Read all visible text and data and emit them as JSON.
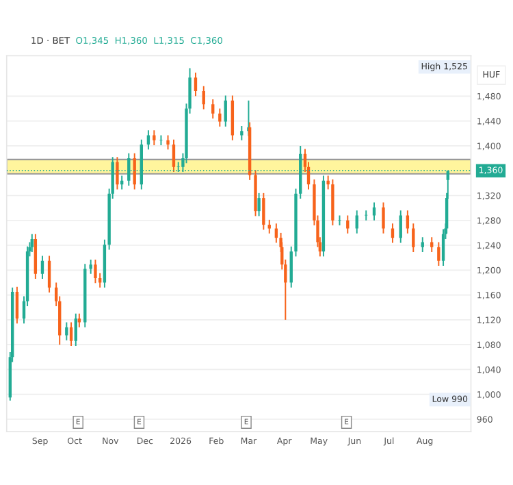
{
  "chart_data": {
    "type": "candlestick",
    "title": "1D · BET",
    "subtitle": "O1,345  H1,360  L1,315  C1,360",
    "x": [
      "2025-08-06",
      "2025-08-08",
      "2025-08-12",
      "2025-08-18",
      "2025-08-21",
      "2025-08-23",
      "2025-08-25",
      "2025-08-28",
      "2025-09-03",
      "2025-09-09",
      "2025-09-15",
      "2025-09-18",
      "2025-09-24",
      "2025-09-28",
      "2025-10-02",
      "2025-10-05",
      "2025-10-10",
      "2025-10-15",
      "2025-10-19",
      "2025-10-23",
      "2025-10-27",
      "2025-10-31",
      "2025-11-03",
      "2025-11-07",
      "2025-11-11",
      "2025-11-17",
      "2025-11-22",
      "2025-11-28",
      "2025-12-04",
      "2025-12-09",
      "2025-12-15",
      "2025-12-21",
      "2025-12-26",
      "2025-12-30",
      "2026-01-03",
      "2026-01-06",
      "2026-01-09",
      "2026-01-14",
      "2026-01-21",
      "2026-01-29",
      "2026-02-04",
      "2026-02-09",
      "2026-02-15",
      "2026-02-23",
      "2026-03-01",
      "2026-03-02",
      "2026-03-07",
      "2026-03-10",
      "2026-03-14",
      "2026-03-19",
      "2026-03-25",
      "2026-03-29",
      "2026-03-30",
      "2026-04-02",
      "2026-04-07",
      "2026-04-11",
      "2026-04-15",
      "2026-04-19",
      "2026-04-22",
      "2026-04-27",
      "2026-04-30",
      "2026-05-02",
      "2026-05-05",
      "2026-05-09",
      "2026-05-13",
      "2026-05-19",
      "2026-05-26",
      "2026-06-03",
      "2026-06-11",
      "2026-06-18",
      "2026-06-26",
      "2026-07-04",
      "2026-07-11",
      "2026-07-17",
      "2026-07-22",
      "2026-07-30",
      "2026-08-07",
      "2026-08-13",
      "2026-08-17",
      "2026-08-19",
      "2026-08-20",
      "2026-08-21"
    ],
    "ohlc": [
      [
        995,
        1068,
        990,
        1060
      ],
      [
        1060,
        1172,
        1052,
        1165
      ],
      [
        1165,
        1173,
        1114,
        1122
      ],
      [
        1122,
        1158,
        1114,
        1150
      ],
      [
        1150,
        1238,
        1142,
        1230
      ],
      [
        1230,
        1245,
        1222,
        1237
      ],
      [
        1237,
        1258,
        1229,
        1250
      ],
      [
        1250,
        1258,
        1186,
        1194
      ],
      [
        1194,
        1223,
        1186,
        1215
      ],
      [
        1215,
        1223,
        1164,
        1172
      ],
      [
        1172,
        1180,
        1142,
        1150
      ],
      [
        1150,
        1158,
        1080,
        1095
      ],
      [
        1095,
        1116,
        1087,
        1108
      ],
      [
        1108,
        1116,
        1078,
        1086
      ],
      [
        1086,
        1130,
        1078,
        1122
      ],
      [
        1122,
        1130,
        1108,
        1116
      ],
      [
        1116,
        1210,
        1108,
        1202
      ],
      [
        1202,
        1217,
        1194,
        1209
      ],
      [
        1209,
        1217,
        1179,
        1187
      ],
      [
        1187,
        1195,
        1172,
        1180
      ],
      [
        1180,
        1249,
        1172,
        1241
      ],
      [
        1241,
        1331,
        1233,
        1323
      ],
      [
        1323,
        1382,
        1315,
        1374
      ],
      [
        1374,
        1382,
        1330,
        1338
      ],
      [
        1338,
        1352,
        1330,
        1344
      ],
      [
        1344,
        1388,
        1336,
        1380
      ],
      [
        1380,
        1388,
        1330,
        1338
      ],
      [
        1338,
        1410,
        1330,
        1402
      ],
      [
        1402,
        1425,
        1394,
        1417
      ],
      [
        1417,
        1425,
        1401,
        1409
      ],
      [
        1409,
        1417,
        1401,
        1409
      ],
      [
        1409,
        1417,
        1394,
        1402
      ],
      [
        1402,
        1410,
        1358,
        1366
      ],
      [
        1366,
        1374,
        1358,
        1366
      ],
      [
        1366,
        1388,
        1358,
        1380
      ],
      [
        1380,
        1468,
        1372,
        1460
      ],
      [
        1460,
        1525,
        1452,
        1510
      ],
      [
        1510,
        1518,
        1480,
        1488
      ],
      [
        1488,
        1496,
        1459,
        1467
      ],
      [
        1467,
        1475,
        1444,
        1452
      ],
      [
        1452,
        1460,
        1431,
        1439
      ],
      [
        1439,
        1481,
        1431,
        1473
      ],
      [
        1473,
        1481,
        1409,
        1417
      ],
      [
        1417,
        1432,
        1409,
        1424
      ],
      [
        1424,
        1473,
        1416,
        1430
      ],
      [
        1430,
        1438,
        1345,
        1353
      ],
      [
        1353,
        1361,
        1287,
        1295
      ],
      [
        1295,
        1324,
        1287,
        1316
      ],
      [
        1316,
        1324,
        1265,
        1273
      ],
      [
        1273,
        1281,
        1259,
        1267
      ],
      [
        1267,
        1275,
        1244,
        1252
      ],
      [
        1252,
        1260,
        1229,
        1237
      ],
      [
        1237,
        1245,
        1201,
        1209
      ],
      [
        1209,
        1217,
        1120,
        1180
      ],
      [
        1180,
        1238,
        1172,
        1230
      ],
      [
        1230,
        1331,
        1222,
        1323
      ],
      [
        1323,
        1400,
        1315,
        1387
      ],
      [
        1387,
        1395,
        1358,
        1366
      ],
      [
        1366,
        1374,
        1330,
        1338
      ],
      [
        1338,
        1346,
        1272,
        1280
      ],
      [
        1280,
        1288,
        1237,
        1245
      ],
      [
        1245,
        1253,
        1222,
        1230
      ],
      [
        1230,
        1352,
        1222,
        1344
      ],
      [
        1344,
        1352,
        1330,
        1338
      ],
      [
        1338,
        1346,
        1272,
        1280
      ],
      [
        1280,
        1288,
        1272,
        1280
      ],
      [
        1280,
        1288,
        1259,
        1267
      ],
      [
        1267,
        1296,
        1259,
        1288
      ],
      [
        1288,
        1296,
        1280,
        1288
      ],
      [
        1288,
        1309,
        1280,
        1301
      ],
      [
        1301,
        1309,
        1259,
        1267
      ],
      [
        1267,
        1275,
        1244,
        1252
      ],
      [
        1252,
        1296,
        1244,
        1288
      ],
      [
        1288,
        1296,
        1259,
        1267
      ],
      [
        1267,
        1275,
        1229,
        1237
      ],
      [
        1237,
        1253,
        1229,
        1245
      ],
      [
        1245,
        1253,
        1229,
        1237
      ],
      [
        1237,
        1245,
        1207,
        1215
      ],
      [
        1215,
        1266,
        1207,
        1258
      ],
      [
        1258,
        1275,
        1250,
        1267
      ],
      [
        1267,
        1324,
        1259,
        1316
      ],
      [
        1345,
        1360,
        1315,
        1360
      ]
    ],
    "colors": [
      "#22ab94",
      "#22ab94",
      "#f7631b",
      "#22ab94",
      "#22ab94",
      "#22ab94",
      "#22ab94",
      "#f7631b",
      "#22ab94",
      "#f7631b",
      "#f7631b",
      "#f7631b",
      "#22ab94",
      "#f7631b",
      "#22ab94",
      "#f7631b",
      "#22ab94",
      "#22ab94",
      "#f7631b",
      "#f7631b",
      "#22ab94",
      "#22ab94",
      "#22ab94",
      "#f7631b",
      "#22ab94",
      "#22ab94",
      "#f7631b",
      "#22ab94",
      "#22ab94",
      "#f7631b",
      "#22ab94",
      "#f7631b",
      "#f7631b",
      "#22ab94",
      "#22ab94",
      "#22ab94",
      "#22ab94",
      "#f7631b",
      "#f7631b",
      "#f7631b",
      "#f7631b",
      "#22ab94",
      "#f7631b",
      "#22ab94",
      "#22ab94",
      "#f7631b",
      "#f7631b",
      "#22ab94",
      "#f7631b",
      "#f7631b",
      "#f7631b",
      "#f7631b",
      "#f7631b",
      "#f7631b",
      "#22ab94",
      "#22ab94",
      "#22ab94",
      "#f7631b",
      "#f7631b",
      "#f7631b",
      "#f7631b",
      "#f7631b",
      "#22ab94",
      "#f7631b",
      "#f7631b",
      "#22ab94",
      "#f7631b",
      "#22ab94",
      "#22ab94",
      "#22ab94",
      "#f7631b",
      "#f7631b",
      "#22ab94",
      "#f7631b",
      "#f7631b",
      "#22ab94",
      "#f7631b",
      "#f7631b",
      "#22ab94",
      "#22ab94",
      "#22ab94",
      "#22ab94"
    ],
    "xlim": [
      "2025-08-03",
      "2026-09-10"
    ],
    "xticks": [
      {
        "value": "2025-09-01",
        "label": "Sep"
      },
      {
        "value": "2025-10-01",
        "label": "Oct"
      },
      {
        "value": "2025-11-01",
        "label": "Nov"
      },
      {
        "value": "2025-12-01",
        "label": "Dec"
      },
      {
        "value": "2026-01-01",
        "label": "2026"
      },
      {
        "value": "2026-02-01",
        "label": "Feb"
      },
      {
        "value": "2026-03-01",
        "label": "Mar"
      },
      {
        "value": "2026-04-01",
        "label": "Apr"
      },
      {
        "value": "2026-05-01",
        "label": "May"
      },
      {
        "value": "2026-06-01",
        "label": "Jun"
      },
      {
        "value": "2026-07-01",
        "label": "Jul"
      },
      {
        "value": "2026-08-01",
        "label": "Aug"
      }
    ],
    "ylim": [
      940,
      1545
    ],
    "yticks": [
      960,
      {
        "value": 1000,
        "label": "1,000"
      },
      {
        "value": 1040,
        "label": "1,040"
      },
      {
        "value": 1080,
        "label": "1,080"
      },
      {
        "value": 1120,
        "label": "1,120"
      },
      {
        "value": 1160,
        "label": "1,160"
      },
      {
        "value": 1200,
        "label": "1,200"
      },
      {
        "value": 1240,
        "label": "1,240"
      },
      {
        "value": 1280,
        "label": "1,280"
      },
      {
        "value": 1320,
        "label": "1,320"
      },
      {
        "value": 1400,
        "label": "1,400"
      },
      {
        "value": 1440,
        "label": "1,440"
      },
      {
        "value": 1480,
        "label": "1,480"
      }
    ],
    "grid": "y",
    "bands": [
      {
        "axis": "y",
        "from": 1355,
        "to": 1378,
        "color": "#fff59d"
      }
    ],
    "ref_lines": [
      {
        "axis": "y",
        "value": 1360,
        "label": "1,360",
        "color": "#22ab94",
        "line_style": "dotted"
      }
    ],
    "annotations": [
      "HUF",
      "High 1,525",
      "Low 990",
      {
        "text": "E",
        "x": "2025-10-04"
      },
      {
        "text": "E",
        "x": "2025-11-26"
      },
      {
        "text": "E",
        "x": "2026-02-27"
      },
      {
        "text": "E",
        "x": "2026-05-25"
      }
    ]
  }
}
